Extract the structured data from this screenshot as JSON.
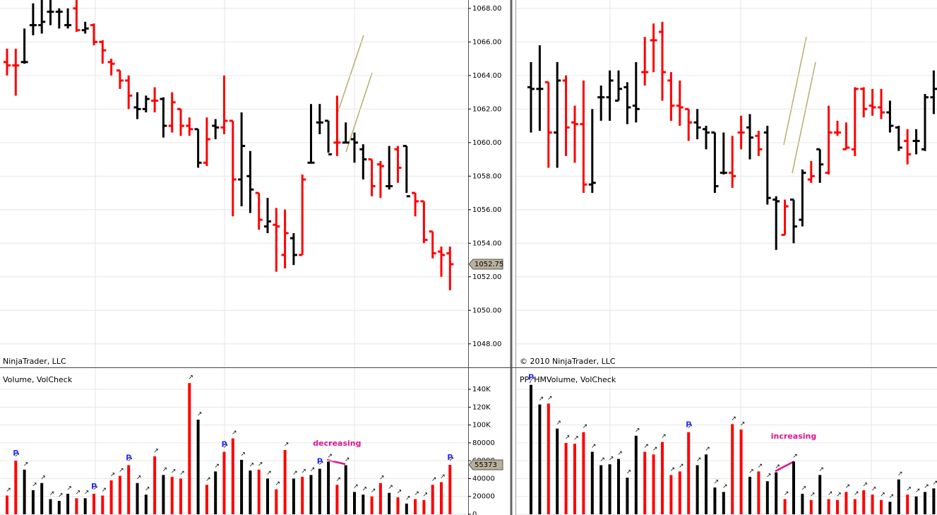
{
  "chart_data": [
    {
      "type": "ohlc",
      "copyright": "NinjaTrader, LLC",
      "open": [
        1064.8,
        1064.6,
        1064.8,
        1067.0,
        1067.0,
        1067.8,
        1067.8,
        1067.0,
        1068.0,
        1066.7,
        1067.0,
        1066.0,
        1064.8,
        1064.3,
        1063.7,
        1062.1,
        1062.0,
        1062.5,
        1062.6,
        1061.0,
        1062.0,
        1061.0,
        1060.8,
        1058.8,
        1061.0,
        1060.9,
        1061.3,
        1057.8,
        1058.0,
        1057.0,
        1055.0,
        1055.1,
        1053.3,
        1054.3,
        1053.3,
        1058.8,
        1061.2,
        1061.3,
        1060.0,
        1060.0,
        1060.2,
        1059.6,
        1059.0,
        1058.7,
        1057.4,
        1059.6,
        1059.8,
        1057.0,
        1056.5,
        1054.7,
        1053.5,
        1053.4
      ],
      "high": [
        1065.6,
        1065.6,
        1066.8,
        1068.3,
        1068.6,
        1068.6,
        1068.0,
        1068.0,
        1068.6,
        1067.2,
        1067.1,
        1066.1,
        1065.0,
        1064.3,
        1064.0,
        1063.0,
        1062.8,
        1063.3,
        1062.7,
        1063.0,
        1062.0,
        1061.5,
        1060.8,
        1061.5,
        1061.4,
        1064.0,
        1061.3,
        1061.8,
        1059.5,
        1057.0,
        1056.7,
        1056.1,
        1056.0,
        1054.6,
        1058.1,
        1062.3,
        1062.3,
        1061.3,
        1062.8,
        1061.2,
        1060.6,
        1059.9,
        1059.0,
        1058.9,
        1059.8,
        1059.8,
        1059.8,
        1057.0,
        1056.5,
        1054.7,
        1053.8,
        1053.8
      ],
      "low": [
        1064.0,
        1062.8,
        1064.7,
        1066.4,
        1066.5,
        1067.0,
        1066.8,
        1066.8,
        1066.6,
        1066.5,
        1065.8,
        1064.7,
        1064.0,
        1063.2,
        1062.0,
        1061.4,
        1061.8,
        1061.8,
        1060.3,
        1060.6,
        1060.4,
        1060.4,
        1058.5,
        1058.6,
        1060.2,
        1060.5,
        1055.6,
        1056.2,
        1055.8,
        1054.8,
        1054.6,
        1052.3,
        1052.5,
        1052.7,
        1053.3,
        1058.8,
        1060.5,
        1059.4,
        1059.2,
        1060.0,
        1058.8,
        1057.8,
        1056.8,
        1056.7,
        1057.2,
        1057.6,
        1057.0,
        1055.6,
        1054.0,
        1053.1,
        1052.0,
        1051.2
      ],
      "close": [
        1064.6,
        1064.6,
        1064.8,
        1067.0,
        1067.2,
        1067.8,
        1067.8,
        1067.0,
        1066.7,
        1066.8,
        1066.0,
        1065.5,
        1064.7,
        1063.7,
        1062.8,
        1062.0,
        1062.6,
        1062.5,
        1061.0,
        1062.4,
        1061.0,
        1060.8,
        1058.8,
        1060.2,
        1060.9,
        1061.3,
        1057.8,
        1059.8,
        1057.2,
        1055.4,
        1055.3,
        1055.0,
        1054.6,
        1053.3,
        1057.8,
        1058.8,
        1061.2,
        1059.3,
        1060.0,
        1060.0,
        1060.0,
        1059.0,
        1057.4,
        1058.6,
        1057.4,
        1058.5,
        1056.8,
        1056.5,
        1054.2,
        1053.4,
        1053.3,
        1052.75
      ],
      "colors": [
        "red",
        "red",
        "black",
        "black",
        "black",
        "black",
        "black",
        "black",
        "red",
        "black",
        "red",
        "red",
        "red",
        "red",
        "red",
        "black",
        "black",
        "red",
        "black",
        "red",
        "red",
        "red",
        "black",
        "red",
        "black",
        "red",
        "red",
        "black",
        "black",
        "red",
        "black",
        "red",
        "red",
        "black",
        "red",
        "black",
        "black",
        "black",
        "red",
        "black",
        "black",
        "black",
        "red",
        "red",
        "black",
        "red",
        "black",
        "red",
        "red",
        "red",
        "red",
        "red"
      ],
      "ylim": [
        1046.6,
        1068.5
      ],
      "yticks": [
        {
          "value": 1068,
          "label": "1068.00"
        },
        {
          "value": 1066,
          "label": "1066.00"
        },
        {
          "value": 1064,
          "label": "1064.00"
        },
        {
          "value": 1062,
          "label": "1062.00"
        },
        {
          "value": 1060,
          "label": "1060.00"
        },
        {
          "value": 1058,
          "label": "1058.00"
        },
        {
          "value": 1056,
          "label": "1056.00"
        },
        {
          "value": 1054,
          "label": "1054.00"
        },
        {
          "value": 1052,
          "label": "1052.00"
        },
        {
          "value": 1050,
          "label": "1050.00"
        },
        {
          "value": 1048,
          "label": "1048.00"
        }
      ],
      "last_value": 1052.75
    },
    {
      "type": "volume",
      "title": "Volume, VolCheck",
      "values": [
        21000,
        60000,
        50000,
        27000,
        35000,
        17000,
        15000,
        23000,
        18000,
        18000,
        23000,
        21000,
        38000,
        43000,
        55000,
        35000,
        22000,
        65000,
        44000,
        42000,
        40000,
        147000,
        106000,
        33000,
        48000,
        70000,
        85000,
        61000,
        49000,
        50000,
        40000,
        28000,
        72000,
        40000,
        42000,
        44000,
        51000,
        59000,
        33000,
        55000,
        25000,
        22000,
        20000,
        35000,
        24000,
        19000,
        12000,
        17000,
        16000,
        33000,
        36000,
        55373
      ],
      "colors": [
        "red",
        "red",
        "black",
        "black",
        "black",
        "black",
        "black",
        "black",
        "red",
        "black",
        "red",
        "red",
        "red",
        "red",
        "red",
        "black",
        "black",
        "red",
        "black",
        "red",
        "red",
        "red",
        "black",
        "red",
        "black",
        "red",
        "red",
        "black",
        "black",
        "red",
        "black",
        "red",
        "red",
        "black",
        "red",
        "black",
        "black",
        "black",
        "red",
        "black",
        "black",
        "black",
        "red",
        "red",
        "black",
        "red",
        "black",
        "red",
        "red",
        "red",
        "red",
        "red"
      ],
      "ylim": [
        -800,
        163000
      ],
      "yticks": [
        {
          "value": 140000,
          "label": "140K"
        },
        {
          "value": 120000,
          "label": "120K"
        },
        {
          "value": 100000,
          "label": "100K"
        },
        80000,
        60000,
        40000,
        20000,
        0
      ],
      "last_value": 55373,
      "pivots": {
        "label": "P",
        "bars": [
          1,
          10,
          14,
          25,
          36,
          51
        ]
      },
      "annotations": [
        {
          "text": "decreasing",
          "bar": 38
        }
      ]
    },
    {
      "type": "ohlc",
      "copyright": "© 2010 NinjaTrader, LLC",
      "open": [
        1063.3,
        1063.2,
        1063.6,
        1060.6,
        1063.7,
        1061.2,
        1061.1,
        1057.5,
        1062.7,
        1062.7,
        1062.5,
        1063.3,
        1062.2,
        1064.2,
        1066.1,
        1066.6,
        1063.7,
        1062.2,
        1062.0,
        1061.2,
        1060.8,
        1060.6,
        1058.2,
        1058.2,
        1060.6,
        1060.9,
        1060.4,
        1060.6,
        1056.6,
        1054.5,
        1056.6,
        1055.4,
        1057.8,
        1059.6,
        1058.2,
        1060.6,
        1059.6,
        1059.6,
        1063.2,
        1062.2,
        1062.1,
        1061.8,
        1060.9,
        1060.1,
        1060.1,
        1059.6,
        1062.7
      ],
      "high": [
        1064.8,
        1065.8,
        1063.6,
        1064.8,
        1064.0,
        1062.2,
        1063.7,
        1062.0,
        1063.4,
        1064.3,
        1064.3,
        1063.6,
        1064.8,
        1066.3,
        1067.1,
        1067.2,
        1064.2,
        1063.7,
        1062.0,
        1062.0,
        1061.0,
        1060.6,
        1060.6,
        1060.4,
        1061.6,
        1061.7,
        1060.7,
        1061.0,
        1056.8,
        1056.6,
        1056.6,
        1058.4,
        1058.9,
        1059.6,
        1062.2,
        1061.3,
        1061.2,
        1063.3,
        1063.3,
        1063.2,
        1063.2,
        1062.5,
        1061.0,
        1060.8,
        1060.8,
        1062.9,
        1064.3
      ],
      "low": [
        1060.6,
        1060.7,
        1058.5,
        1058.5,
        1059.2,
        1058.8,
        1057.0,
        1057.0,
        1061.3,
        1061.3,
        1062.5,
        1061.1,
        1061.2,
        1063.4,
        1064.2,
        1062.5,
        1061.3,
        1061.0,
        1060.1,
        1060.2,
        1059.6,
        1057.0,
        1058.1,
        1057.3,
        1059.6,
        1059.0,
        1059.2,
        1056.3,
        1053.6,
        1054.5,
        1054.0,
        1055.0,
        1057.6,
        1057.6,
        1058.1,
        1060.4,
        1059.6,
        1059.2,
        1061.5,
        1061.6,
        1061.4,
        1060.6,
        1059.5,
        1058.7,
        1059.3,
        1059.5,
        1061.7
      ],
      "close": [
        1063.2,
        1063.2,
        1060.6,
        1063.7,
        1060.9,
        1061.1,
        1057.5,
        1057.6,
        1062.7,
        1063.7,
        1063.2,
        1062.1,
        1062.0,
        1064.2,
        1066.1,
        1064.2,
        1062.2,
        1062.1,
        1061.2,
        1060.9,
        1060.6,
        1057.4,
        1058.2,
        1058.0,
        1060.6,
        1060.3,
        1059.6,
        1056.7,
        1056.5,
        1056.2,
        1055.0,
        1058.2,
        1058.0,
        1058.7,
        1060.6,
        1060.6,
        1059.7,
        1063.2,
        1062.0,
        1062.1,
        1061.8,
        1061.0,
        1059.7,
        1059.3,
        1060.1,
        1062.7,
        1063.2
      ],
      "colors": [
        "black",
        "black",
        "red",
        "black",
        "red",
        "red",
        "red",
        "black",
        "black",
        "black",
        "black",
        "black",
        "black",
        "red",
        "red",
        "red",
        "red",
        "red",
        "red",
        "black",
        "black",
        "black",
        "black",
        "red",
        "red",
        "black",
        "red",
        "black",
        "black",
        "red",
        "black",
        "black",
        "red",
        "black",
        "red",
        "red",
        "red",
        "red",
        "red",
        "red",
        "red",
        "black",
        "black",
        "red",
        "black",
        "black",
        "black"
      ],
      "ylim": [
        1046.6,
        1068.5
      ]
    },
    {
      "type": "volume",
      "title": "PP, HMVolume, VolCheck",
      "values": [
        145000,
        123000,
        124000,
        96000,
        80000,
        79000,
        92000,
        70000,
        55000,
        56000,
        62000,
        41000,
        88000,
        70000,
        67000,
        81000,
        44000,
        48000,
        92000,
        55000,
        67000,
        30000,
        25000,
        101000,
        95000,
        42000,
        48000,
        37000,
        47000,
        17000,
        59000,
        23000,
        16000,
        44000,
        17000,
        16000,
        25000,
        17000,
        27000,
        22000,
        16000,
        14000,
        39000,
        22000,
        20000,
        25000,
        29000
      ],
      "colors": [
        "black",
        "black",
        "red",
        "black",
        "red",
        "red",
        "red",
        "black",
        "black",
        "black",
        "black",
        "black",
        "black",
        "red",
        "red",
        "red",
        "red",
        "red",
        "red",
        "black",
        "black",
        "black",
        "black",
        "red",
        "red",
        "black",
        "red",
        "black",
        "black",
        "red",
        "black",
        "black",
        "red",
        "black",
        "red",
        "red",
        "red",
        "red",
        "red",
        "red",
        "red",
        "black",
        "black",
        "red",
        "black",
        "black",
        "black"
      ],
      "ylim": [
        -800,
        163000
      ],
      "pivots": {
        "label": "P",
        "bars": [
          0,
          18
        ]
      },
      "annotations": [
        {
          "text": "increasing",
          "bar": 30
        }
      ]
    }
  ]
}
